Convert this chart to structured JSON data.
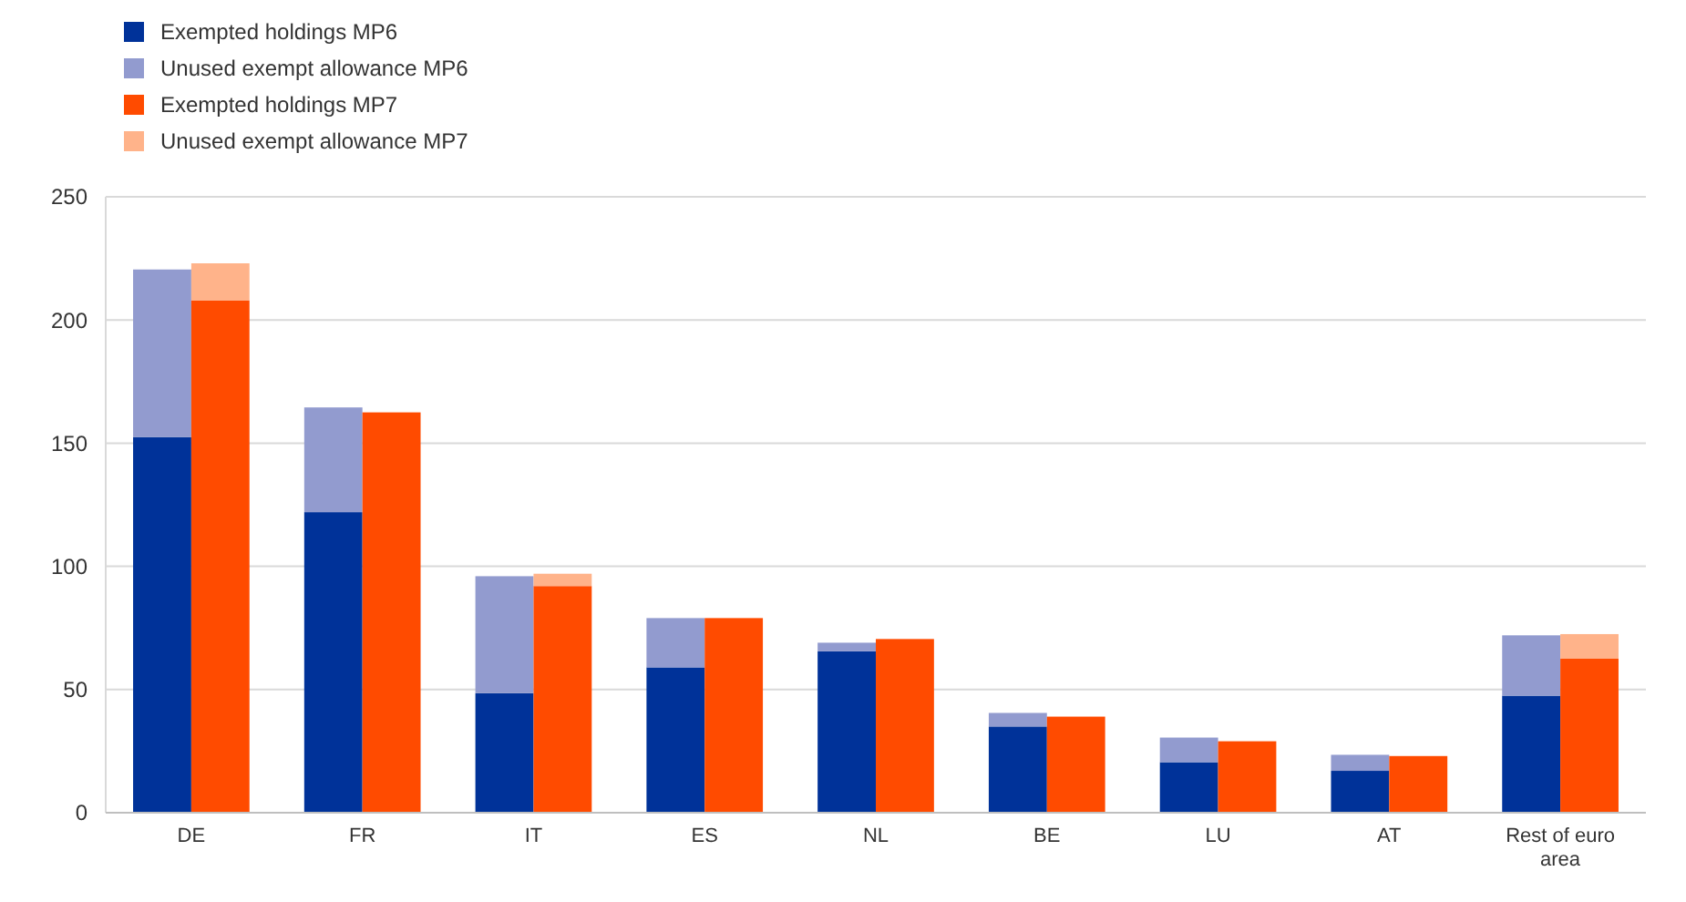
{
  "chart_data": {
    "type": "bar",
    "categories": [
      "DE",
      "FR",
      "IT",
      "ES",
      "NL",
      "BE",
      "LU",
      "AT",
      "Rest of euro area"
    ],
    "ylim": [
      0,
      250
    ],
    "yticks": [
      0,
      50,
      100,
      150,
      200,
      250
    ],
    "grid": "y",
    "legend": "top left",
    "series": [
      {
        "name": "Exempted holdings MP6",
        "color": "#003299",
        "base": [
          0,
          0,
          0,
          0,
          0,
          0,
          0,
          0,
          0
        ],
        "values": [
          152.5,
          122,
          48.5,
          59,
          65.5,
          35,
          20.5,
          17,
          47.5
        ]
      },
      {
        "name": "Unused exempt allowance MP6",
        "color": "#929bcf",
        "base": [
          152.5,
          122,
          48.5,
          59,
          65.5,
          35,
          20.5,
          17,
          47.5
        ],
        "values": [
          68,
          42.5,
          47.5,
          20,
          3.5,
          5.5,
          10,
          6.5,
          24.5
        ]
      },
      {
        "name": "Exempted holdings MP7",
        "color": "#ff4b00",
        "base": [
          0,
          0,
          0,
          0,
          0,
          0,
          0,
          0,
          0
        ],
        "values": [
          208,
          162.5,
          92,
          79,
          70.5,
          39,
          29,
          23,
          62.5
        ]
      },
      {
        "name": "Unused exempt allowance MP7",
        "color": "#ffb38a",
        "base": [
          208,
          null,
          92,
          null,
          null,
          null,
          null,
          null,
          62.5
        ],
        "values": [
          15,
          null,
          5,
          null,
          null,
          null,
          null,
          null,
          10
        ]
      }
    ]
  }
}
